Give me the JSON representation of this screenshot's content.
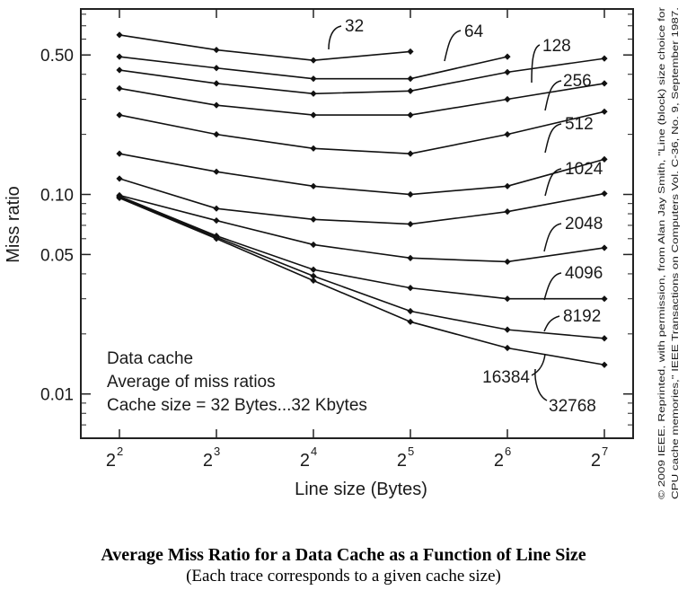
{
  "chart_data": {
    "type": "line",
    "xlabel": "Line size (Bytes)",
    "ylabel": "Miss ratio",
    "y_scale": "log",
    "ylim": [
      0.006,
      0.85
    ],
    "x": [
      4,
      8,
      16,
      32,
      64,
      128
    ],
    "x_tick_labels": [
      {
        "base": "2",
        "exp": "2"
      },
      {
        "base": "2",
        "exp": "3"
      },
      {
        "base": "2",
        "exp": "4"
      },
      {
        "base": "2",
        "exp": "5"
      },
      {
        "base": "2",
        "exp": "6"
      },
      {
        "base": "2",
        "exp": "7"
      }
    ],
    "y_ticks": [
      0.01,
      0.05,
      0.1,
      0.5
    ],
    "y_tick_labels": [
      "0.01",
      "0.05",
      "0.10",
      "0.50"
    ],
    "series": [
      {
        "name": "32",
        "x": [
          4,
          8,
          16,
          32
        ],
        "values": [
          0.63,
          0.53,
          0.47,
          0.52
        ]
      },
      {
        "name": "64",
        "x": [
          4,
          8,
          16,
          32,
          64
        ],
        "values": [
          0.49,
          0.43,
          0.38,
          0.38,
          0.49
        ]
      },
      {
        "name": "128",
        "values": [
          0.42,
          0.36,
          0.32,
          0.33,
          0.41,
          0.48
        ]
      },
      {
        "name": "256",
        "values": [
          0.34,
          0.28,
          0.25,
          0.25,
          0.3,
          0.36
        ]
      },
      {
        "name": "512",
        "values": [
          0.25,
          0.2,
          0.17,
          0.16,
          0.2,
          0.26
        ]
      },
      {
        "name": "1024",
        "values": [
          0.16,
          0.13,
          0.11,
          0.1,
          0.11,
          0.15
        ]
      },
      {
        "name": "2048",
        "values": [
          0.12,
          0.085,
          0.075,
          0.071,
          0.082,
          0.101
        ]
      },
      {
        "name": "4096",
        "values": [
          0.099,
          0.074,
          0.056,
          0.048,
          0.046,
          0.054
        ]
      },
      {
        "name": "8192",
        "values": [
          0.098,
          0.062,
          0.042,
          0.034,
          0.03,
          0.03
        ]
      },
      {
        "name": "16384",
        "values": [
          0.097,
          0.061,
          0.039,
          0.026,
          0.021,
          0.019
        ]
      },
      {
        "name": "32768",
        "values": [
          0.096,
          0.06,
          0.037,
          0.023,
          0.017,
          0.014
        ]
      }
    ],
    "inset_text": [
      "Data cache",
      "Average of miss ratios",
      "Cache size = 32 Bytes...32 Kbytes"
    ],
    "credit": [
      "© 2009 IEEE. Reprinted, with permission, from Alan Jay Smith, \"Line (block) size choice for",
      "CPU cache memories,\" IEEE Transactions on Computers Vol. C-36, No. 9, September 1987."
    ],
    "legend": "inline"
  },
  "caption": {
    "title": "Average Miss Ratio for a Data Cache as a Function of Line Size",
    "subtitle": "(Each trace corresponds to a given cache size)"
  }
}
